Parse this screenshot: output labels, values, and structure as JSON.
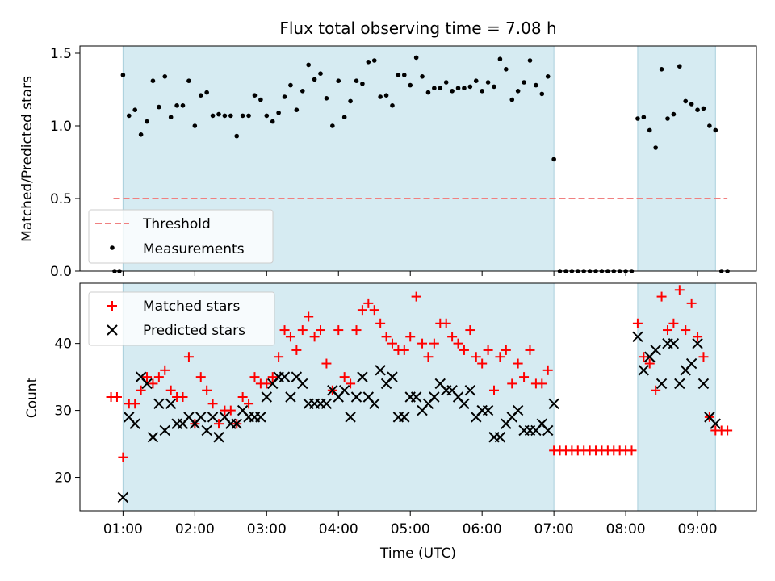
{
  "chart_data": [
    {
      "type": "scatter",
      "title": "Flux total observing time = 7.08 h",
      "ylabel": "Matched/Predicted stars",
      "xlabel": "",
      "ylim": [
        0,
        1.55
      ],
      "yticks": [
        "0.0",
        "0.5",
        "1.0",
        "1.5"
      ],
      "grid": false,
      "legend": {
        "placement": "lower-left",
        "entries": [
          "Threshold",
          "Measurements"
        ]
      },
      "observing_windows": [
        [
          "01:00",
          "07:00"
        ],
        [
          "08:10",
          "09:15"
        ]
      ],
      "threshold": {
        "name": "Threshold",
        "y": 0.5,
        "x_range": [
          "00:52",
          "09:25"
        ],
        "color": "#f08080",
        "style": "dashed"
      },
      "series": [
        {
          "name": "Measurements",
          "color": "#000000",
          "x": [
            "00:53",
            "00:57",
            "01:00",
            "01:05",
            "01:10",
            "01:15",
            "01:20",
            "01:25",
            "01:30",
            "01:35",
            "01:40",
            "01:45",
            "01:50",
            "01:55",
            "02:00",
            "02:05",
            "02:10",
            "02:15",
            "02:20",
            "02:25",
            "02:30",
            "02:35",
            "02:40",
            "02:45",
            "02:50",
            "02:55",
            "03:00",
            "03:05",
            "03:10",
            "03:15",
            "03:20",
            "03:25",
            "03:30",
            "03:35",
            "03:40",
            "03:45",
            "03:50",
            "03:55",
            "04:00",
            "04:05",
            "04:10",
            "04:15",
            "04:20",
            "04:25",
            "04:30",
            "04:35",
            "04:40",
            "04:45",
            "04:50",
            "04:55",
            "05:00",
            "05:05",
            "05:10",
            "05:15",
            "05:20",
            "05:25",
            "05:30",
            "05:35",
            "05:40",
            "05:45",
            "05:50",
            "05:55",
            "06:00",
            "06:05",
            "06:10",
            "06:15",
            "06:20",
            "06:25",
            "06:30",
            "06:35",
            "06:40",
            "06:45",
            "06:50",
            "06:55",
            "07:00",
            "07:05",
            "07:10",
            "07:15",
            "07:20",
            "07:25",
            "07:30",
            "07:35",
            "07:40",
            "07:45",
            "07:50",
            "07:55",
            "08:00",
            "08:05",
            "08:10",
            "08:15",
            "08:20",
            "08:25",
            "08:30",
            "08:35",
            "08:40",
            "08:45",
            "08:50",
            "08:55",
            "09:00",
            "09:05",
            "09:10",
            "09:15",
            "09:20",
            "09:25"
          ],
          "y": [
            0.0,
            0.0,
            1.35,
            1.07,
            1.11,
            0.94,
            1.03,
            1.31,
            1.13,
            1.34,
            1.06,
            1.14,
            1.14,
            1.31,
            1.0,
            1.21,
            1.23,
            1.07,
            1.08,
            1.07,
            1.07,
            0.93,
            1.07,
            1.07,
            1.21,
            1.18,
            1.07,
            1.03,
            1.09,
            1.2,
            1.28,
            1.11,
            1.24,
            1.42,
            1.32,
            1.36,
            1.19,
            1.0,
            1.31,
            1.06,
            1.17,
            1.31,
            1.29,
            1.44,
            1.45,
            1.2,
            1.21,
            1.14,
            1.35,
            1.35,
            1.28,
            1.47,
            1.34,
            1.23,
            1.26,
            1.26,
            1.3,
            1.24,
            1.26,
            1.26,
            1.27,
            1.31,
            1.24,
            1.3,
            1.27,
            1.46,
            1.39,
            1.18,
            1.24,
            1.3,
            1.45,
            1.28,
            1.22,
            1.34,
            0.77,
            0.0,
            0.0,
            0.0,
            0.0,
            0.0,
            0.0,
            0.0,
            0.0,
            0.0,
            0.0,
            0.0,
            0.0,
            0.0,
            1.05,
            1.06,
            0.97,
            0.85,
            1.39,
            1.05,
            1.08,
            1.41,
            1.17,
            1.15,
            1.11,
            1.12,
            1.0,
            0.97,
            0.0,
            0.0
          ]
        }
      ]
    },
    {
      "type": "scatter",
      "title": "",
      "ylabel": "Count",
      "xlabel": "Time (UTC)",
      "xticks": [
        "01:00",
        "02:00",
        "03:00",
        "04:00",
        "05:00",
        "06:00",
        "07:00",
        "08:00",
        "09:00"
      ],
      "ylim": [
        15,
        49
      ],
      "yticks": [
        "20",
        "30",
        "40"
      ],
      "grid": false,
      "legend": {
        "placement": "top-left",
        "entries": [
          "Matched stars",
          "Predicted stars"
        ]
      },
      "observing_windows": [
        [
          "01:00",
          "07:00"
        ],
        [
          "08:10",
          "09:15"
        ]
      ],
      "series": [
        {
          "name": "Matched stars",
          "marker": "plus",
          "color": "#ff0000",
          "x": [
            "00:50",
            "00:55",
            "01:00",
            "01:05",
            "01:10",
            "01:15",
            "01:20",
            "01:25",
            "01:30",
            "01:35",
            "01:40",
            "01:45",
            "01:50",
            "01:55",
            "02:00",
            "02:05",
            "02:10",
            "02:15",
            "02:20",
            "02:25",
            "02:30",
            "02:35",
            "02:40",
            "02:45",
            "02:50",
            "02:55",
            "03:00",
            "03:05",
            "03:10",
            "03:15",
            "03:20",
            "03:25",
            "03:30",
            "03:35",
            "03:40",
            "03:45",
            "03:50",
            "03:55",
            "04:00",
            "04:05",
            "04:10",
            "04:15",
            "04:20",
            "04:25",
            "04:30",
            "04:35",
            "04:40",
            "04:45",
            "04:50",
            "04:55",
            "05:00",
            "05:05",
            "05:10",
            "05:15",
            "05:20",
            "05:25",
            "05:30",
            "05:35",
            "05:40",
            "05:45",
            "05:50",
            "05:55",
            "06:00",
            "06:05",
            "06:10",
            "06:15",
            "06:20",
            "06:25",
            "06:30",
            "06:35",
            "06:40",
            "06:45",
            "06:50",
            "06:55",
            "07:00",
            "07:05",
            "07:10",
            "07:15",
            "07:20",
            "07:25",
            "07:30",
            "07:35",
            "07:40",
            "07:45",
            "07:50",
            "07:55",
            "08:00",
            "08:05",
            "08:10",
            "08:15",
            "08:20",
            "08:25",
            "08:30",
            "08:35",
            "08:40",
            "08:45",
            "08:50",
            "08:55",
            "09:00",
            "09:05",
            "09:10",
            "09:15",
            "09:20",
            "09:25"
          ],
          "y": [
            32,
            32,
            23,
            31,
            31,
            33,
            35,
            34,
            35,
            36,
            33,
            32,
            32,
            38,
            28,
            35,
            33,
            31,
            28,
            30,
            30,
            28,
            32,
            31,
            35,
            34,
            34,
            35,
            38,
            42,
            41,
            39,
            42,
            44,
            41,
            42,
            37,
            33,
            42,
            35,
            34,
            42,
            45,
            46,
            45,
            43,
            41,
            40,
            39,
            39,
            41,
            47,
            40,
            38,
            40,
            43,
            43,
            41,
            40,
            39,
            42,
            38,
            37,
            39,
            33,
            38,
            39,
            34,
            37,
            35,
            39,
            34,
            34,
            36,
            24,
            24,
            24,
            24,
            24,
            24,
            24,
            24,
            24,
            24,
            24,
            24,
            24,
            24,
            43,
            38,
            37,
            33,
            47,
            42,
            43,
            48,
            42,
            46,
            41,
            38,
            29,
            27,
            27,
            27
          ]
        },
        {
          "name": "Predicted stars",
          "marker": "x",
          "color": "#000000",
          "x": [
            "01:00",
            "01:05",
            "01:10",
            "01:15",
            "01:20",
            "01:25",
            "01:30",
            "01:35",
            "01:40",
            "01:45",
            "01:50",
            "01:55",
            "02:00",
            "02:05",
            "02:10",
            "02:15",
            "02:20",
            "02:25",
            "02:30",
            "02:35",
            "02:40",
            "02:45",
            "02:50",
            "02:55",
            "03:00",
            "03:05",
            "03:10",
            "03:15",
            "03:20",
            "03:25",
            "03:30",
            "03:35",
            "03:40",
            "03:45",
            "03:50",
            "03:55",
            "04:00",
            "04:05",
            "04:10",
            "04:15",
            "04:20",
            "04:25",
            "04:30",
            "04:35",
            "04:40",
            "04:45",
            "04:50",
            "04:55",
            "05:00",
            "05:05",
            "05:10",
            "05:15",
            "05:20",
            "05:25",
            "05:30",
            "05:35",
            "05:40",
            "05:45",
            "05:50",
            "05:55",
            "06:00",
            "06:05",
            "06:10",
            "06:15",
            "06:20",
            "06:25",
            "06:30",
            "06:35",
            "06:40",
            "06:45",
            "06:50",
            "06:55",
            "07:00",
            "08:10",
            "08:15",
            "08:20",
            "08:25",
            "08:30",
            "08:35",
            "08:40",
            "08:45",
            "08:50",
            "08:55",
            "09:00",
            "09:05",
            "09:10",
            "09:15"
          ],
          "y": [
            17,
            29,
            28,
            35,
            34,
            26,
            31,
            27,
            31,
            28,
            28,
            29,
            28,
            29,
            27,
            29,
            26,
            29,
            28,
            28,
            30,
            29,
            29,
            29,
            32,
            34,
            35,
            35,
            32,
            35,
            34,
            31,
            31,
            31,
            31,
            33,
            32,
            33,
            29,
            32,
            35,
            32,
            31,
            36,
            34,
            35,
            29,
            29,
            32,
            32,
            30,
            31,
            32,
            34,
            33,
            33,
            32,
            31,
            33,
            29,
            30,
            30,
            26,
            26,
            28,
            29,
            30,
            27,
            27,
            27,
            28,
            27,
            31,
            41,
            36,
            38,
            39,
            34,
            40,
            40,
            34,
            36,
            37,
            40,
            34,
            29,
            28
          ]
        }
      ]
    }
  ]
}
